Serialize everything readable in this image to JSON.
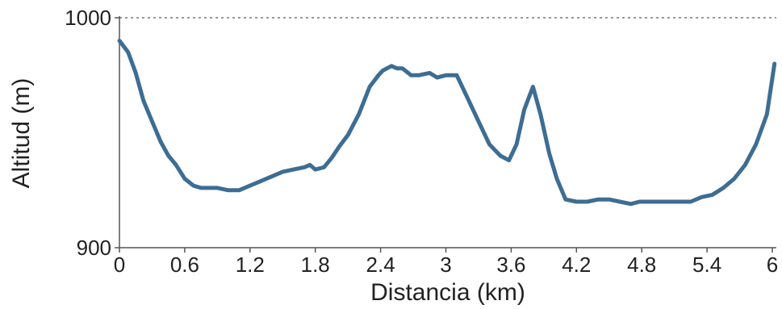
{
  "chart_data": {
    "type": "line",
    "xlabel": "Distancia (km)",
    "ylabel": "Altitud (m)",
    "xlim": [
      0,
      6.05
    ],
    "ylim": [
      900,
      1000
    ],
    "x_ticks": [
      0,
      0.6,
      1.2,
      1.8,
      2.4,
      3,
      3.6,
      4.2,
      4.8,
      5.4,
      6
    ],
    "x_tick_labels": [
      "0",
      "0.6",
      "1.2",
      "1.8",
      "2.4",
      "3",
      "3.6",
      "4.2",
      "4.8",
      "5.4",
      "6"
    ],
    "y_ticks": [
      900,
      1000
    ],
    "y_tick_labels": [
      "900",
      "1000"
    ],
    "grid": "dotted line at y=1000",
    "line_color": "#3e6d93",
    "series": [
      {
        "x": [
          0,
          0.08,
          0.15,
          0.22,
          0.3,
          0.38,
          0.45,
          0.52,
          0.6,
          0.68,
          0.75,
          0.82,
          0.9,
          1.0,
          1.1,
          1.2,
          1.3,
          1.4,
          1.5,
          1.6,
          1.7,
          1.75,
          1.8,
          1.88,
          1.95,
          2.02,
          2.1,
          2.2,
          2.3,
          2.38,
          2.42,
          2.5,
          2.55,
          2.6,
          2.68,
          2.75,
          2.85,
          2.92,
          3.0,
          3.1,
          3.2,
          3.3,
          3.4,
          3.5,
          3.58,
          3.65,
          3.72,
          3.8,
          3.87,
          3.95,
          4.02,
          4.1,
          4.2,
          4.3,
          4.4,
          4.5,
          4.6,
          4.7,
          4.78,
          4.85,
          4.95,
          5.05,
          5.15,
          5.25,
          5.35,
          5.45,
          5.55,
          5.65,
          5.75,
          5.85,
          5.95,
          6.02
        ],
        "y": [
          990,
          985,
          976,
          964,
          955,
          946,
          940,
          936,
          930,
          927,
          926,
          926,
          926,
          925,
          925,
          927,
          929,
          931,
          933,
          934,
          935,
          936,
          934,
          935,
          939,
          944,
          949,
          958,
          970,
          975,
          977,
          979,
          978,
          978,
          975,
          975,
          976,
          974,
          975,
          975,
          965,
          955,
          945,
          940,
          938,
          945,
          960,
          970,
          958,
          941,
          930,
          921,
          920,
          920,
          921,
          921,
          920,
          919,
          920,
          920,
          920,
          920,
          920,
          920,
          922,
          923,
          926,
          930,
          936,
          945,
          958,
          980
        ]
      }
    ]
  }
}
